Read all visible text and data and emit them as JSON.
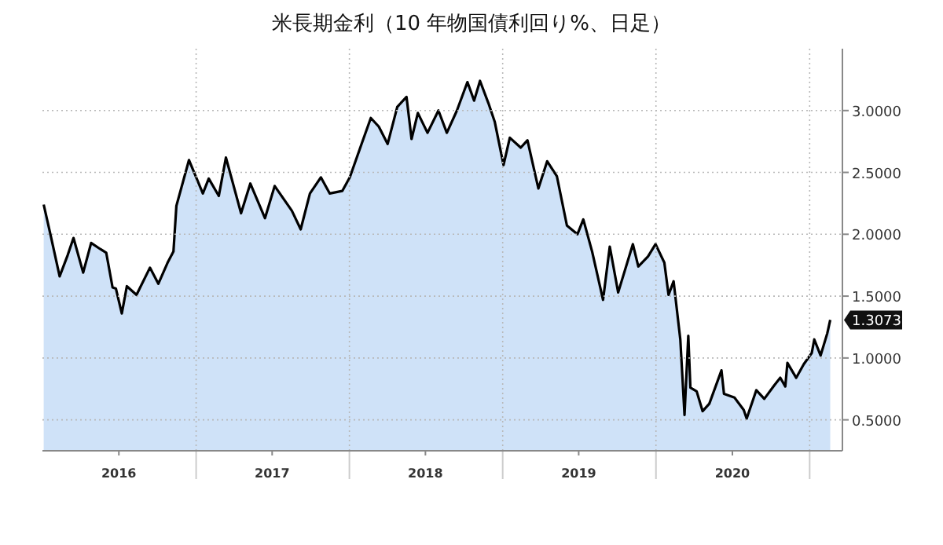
{
  "chart_data": {
    "type": "area",
    "title": "米長期金利（10 年物国債利回り%、日足）",
    "x": [
      "2016-01-04",
      "2016-01-20",
      "2016-02-11",
      "2016-03-01",
      "2016-03-15",
      "2016-04-07",
      "2016-04-26",
      "2016-05-18",
      "2016-06-01",
      "2016-06-16",
      "2016-06-24",
      "2016-07-08",
      "2016-07-20",
      "2016-08-12",
      "2016-09-13",
      "2016-10-03",
      "2016-10-25",
      "2016-11-08",
      "2016-11-15",
      "2016-12-15",
      "2017-01-17",
      "2017-01-31",
      "2017-02-24",
      "2017-03-13",
      "2017-04-18",
      "2017-05-10",
      "2017-06-14",
      "2017-07-07",
      "2017-08-17",
      "2017-09-07",
      "2017-09-29",
      "2017-10-25",
      "2017-11-15",
      "2017-12-15",
      "2018-01-02",
      "2018-01-30",
      "2018-02-21",
      "2018-03-12",
      "2018-04-02",
      "2018-04-25",
      "2018-05-17",
      "2018-05-29",
      "2018-06-13",
      "2018-07-06",
      "2018-08-01",
      "2018-08-21",
      "2018-09-14",
      "2018-10-09",
      "2018-10-25",
      "2018-11-08",
      "2018-11-28",
      "2018-12-13",
      "2019-01-03",
      "2019-01-18",
      "2019-02-13",
      "2019-03-01",
      "2019-03-27",
      "2019-04-17",
      "2019-05-10",
      "2019-06-03",
      "2019-06-28",
      "2019-07-12",
      "2019-08-02",
      "2019-08-28",
      "2019-09-13",
      "2019-10-03",
      "2019-11-07",
      "2019-11-20",
      "2019-12-13",
      "2019-12-31",
      "2020-01-21",
      "2020-01-31",
      "2020-02-12",
      "2020-02-28",
      "2020-03-09",
      "2020-03-18",
      "2020-03-23",
      "2020-04-07",
      "2020-04-21",
      "2020-05-07",
      "2020-06-05",
      "2020-06-11",
      "2020-07-06",
      "2020-07-28",
      "2020-08-04",
      "2020-08-27",
      "2020-09-15",
      "2020-10-09",
      "2020-10-23",
      "2020-11-04",
      "2020-11-09",
      "2020-11-30",
      "2020-12-18",
      "2021-01-06",
      "2021-01-12",
      "2021-01-27",
      "2021-02-12",
      "2021-02-19"
    ],
    "series": [
      {
        "color": "#000000",
        "values": [
          2.24,
          2.0,
          1.66,
          1.83,
          1.97,
          1.69,
          1.93,
          1.88,
          1.85,
          1.57,
          1.56,
          1.36,
          1.58,
          1.51,
          1.73,
          1.6,
          1.77,
          1.86,
          2.23,
          2.6,
          2.33,
          2.45,
          2.31,
          2.62,
          2.17,
          2.41,
          2.13,
          2.39,
          2.19,
          2.04,
          2.33,
          2.46,
          2.33,
          2.35,
          2.46,
          2.73,
          2.94,
          2.87,
          2.73,
          3.03,
          3.11,
          2.77,
          2.98,
          2.82,
          3.0,
          2.82,
          3.0,
          3.23,
          3.08,
          3.24,
          3.06,
          2.91,
          2.56,
          2.78,
          2.7,
          2.76,
          2.37,
          2.59,
          2.47,
          2.07,
          2.0,
          2.12,
          1.86,
          1.47,
          1.9,
          1.53,
          1.92,
          1.74,
          1.82,
          1.92,
          1.77,
          1.51,
          1.62,
          1.15,
          0.54,
          1.18,
          0.76,
          0.73,
          0.57,
          0.63,
          0.9,
          0.71,
          0.68,
          0.58,
          0.51,
          0.74,
          0.67,
          0.78,
          0.84,
          0.77,
          0.96,
          0.84,
          0.95,
          1.04,
          1.15,
          1.02,
          1.2,
          1.3073
        ]
      }
    ],
    "xlim": [
      "2016-01-01",
      "2021-03-20"
    ],
    "xticks": [
      {
        "value": "2016-07-01",
        "label": "2016"
      },
      {
        "value": "2017-01-01",
        "label": null
      },
      {
        "value": "2017-07-01",
        "label": "2017"
      },
      {
        "value": "2018-01-01",
        "label": null
      },
      {
        "value": "2018-07-01",
        "label": "2018"
      },
      {
        "value": "2019-01-01",
        "label": null
      },
      {
        "value": "2019-07-01",
        "label": "2019"
      },
      {
        "value": "2020-01-01",
        "label": null
      },
      {
        "value": "2020-07-01",
        "label": "2020"
      },
      {
        "value": "2021-01-01",
        "label": null
      }
    ],
    "ylim": [
      0.25,
      3.5
    ],
    "yticks": [
      {
        "value": 0.5,
        "label": "0.5000"
      },
      {
        "value": 1.0,
        "label": "1.0000"
      },
      {
        "value": 1.5,
        "label": "1.5000"
      },
      {
        "value": 2.0,
        "label": "2.0000"
      },
      {
        "value": 2.5,
        "label": "2.5000"
      },
      {
        "value": 3.0,
        "label": "3.0000"
      }
    ],
    "grid": true,
    "annotations": [
      {
        "text": "1.3073",
        "x": "2021-02-19",
        "y": 1.3073
      }
    ]
  }
}
